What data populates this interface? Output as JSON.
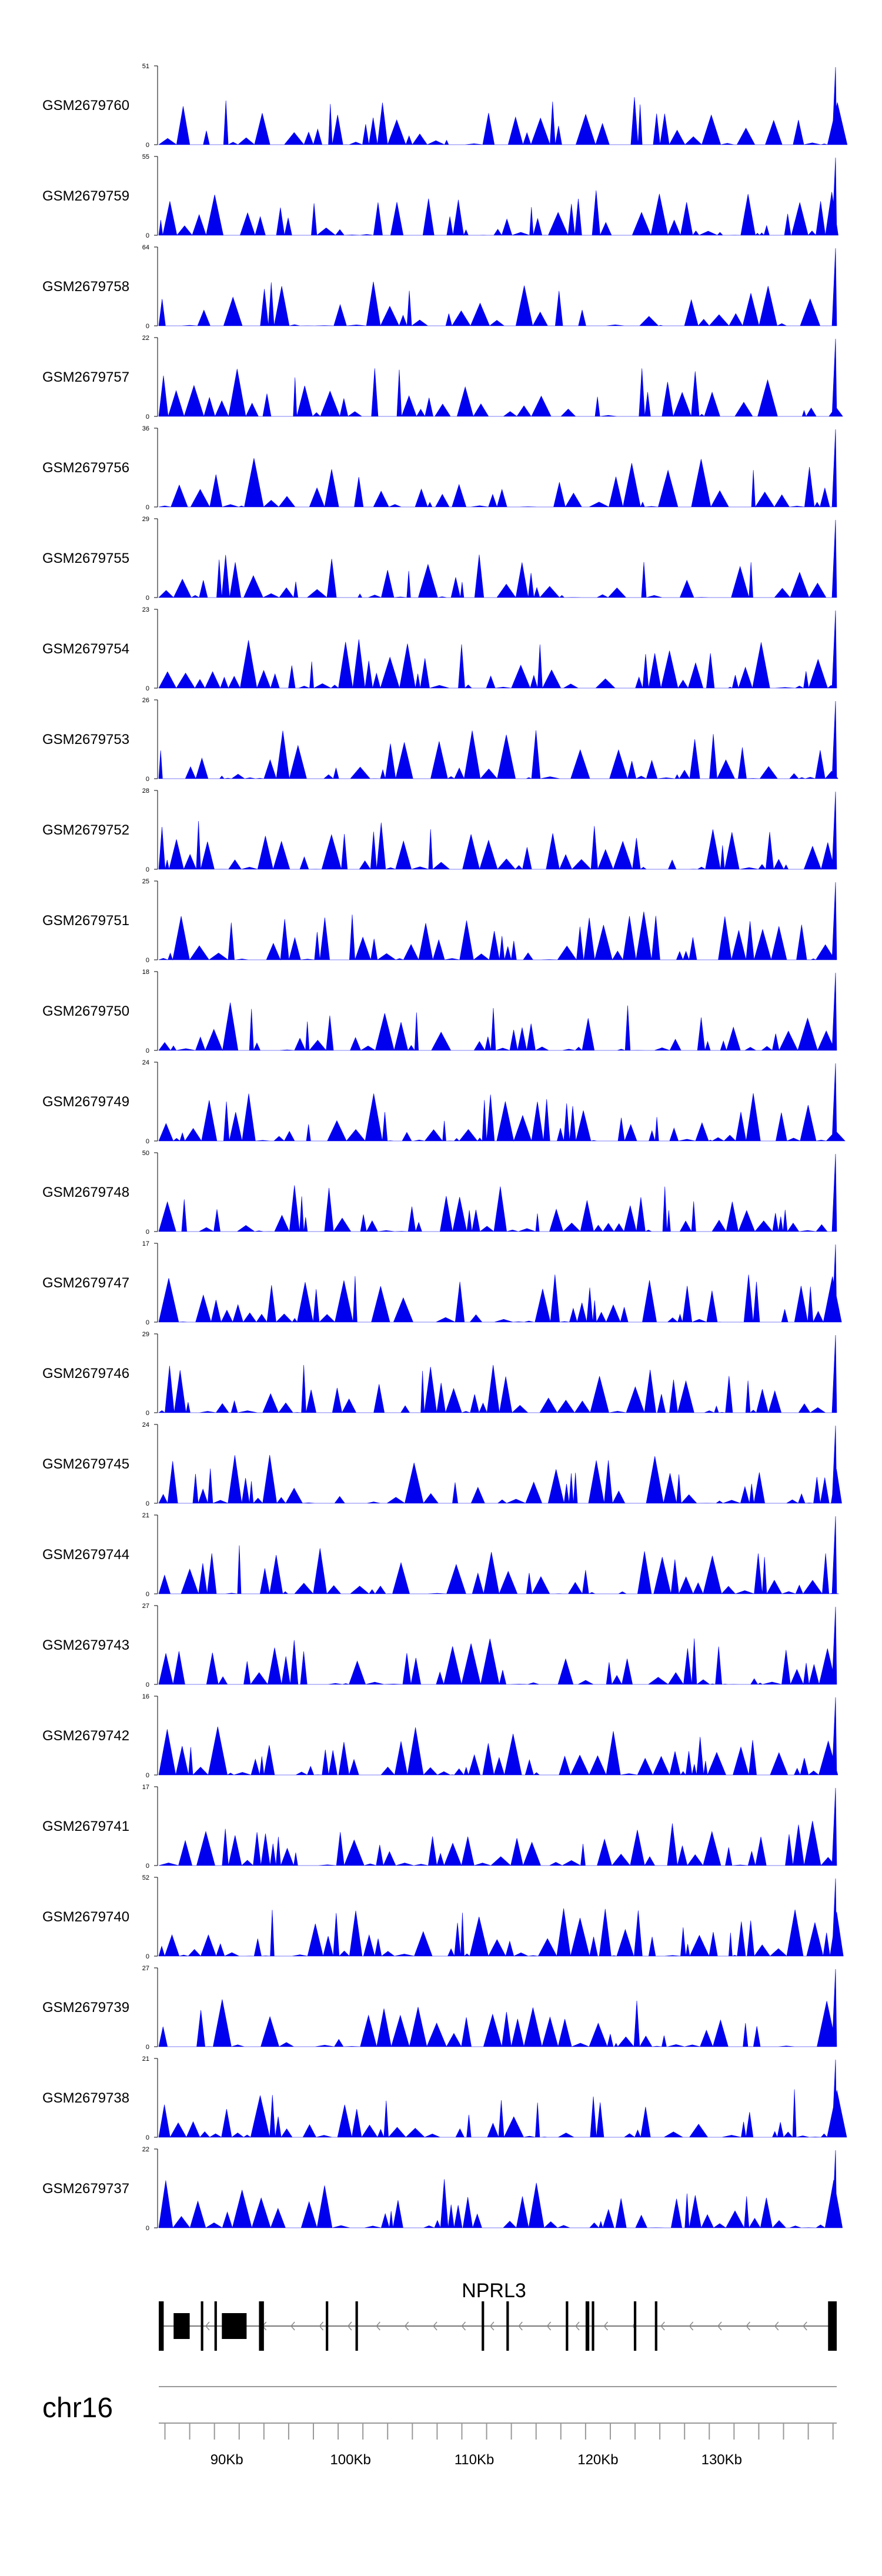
{
  "chart_data": {
    "type": "area",
    "title": "",
    "chromosome": "chr16",
    "x_range_kb": [
      84.5,
      139.3
    ],
    "fill_color": "#0000ee",
    "gene": {
      "name": "NPRL3",
      "strand": "-",
      "start_kb": 84.5,
      "end_kb": 139.3,
      "exons_kb": [
        [
          84.5,
          84.9
        ],
        [
          85.7,
          87.0
        ],
        [
          87.9,
          88.1
        ],
        [
          89.0,
          89.2
        ],
        [
          89.6,
          91.6
        ],
        [
          92.6,
          93.0
        ],
        [
          98.0,
          98.2
        ],
        [
          100.4,
          100.6
        ],
        [
          110.6,
          110.8
        ],
        [
          112.6,
          112.8
        ],
        [
          117.4,
          117.6
        ],
        [
          119.0,
          119.3
        ],
        [
          119.5,
          119.7
        ],
        [
          122.9,
          123.1
        ],
        [
          124.6,
          124.8
        ],
        [
          138.6,
          139.3
        ]
      ]
    },
    "axis_ticks_kb": [
      90,
      100,
      110,
      120,
      130
    ],
    "axis_tick_labels": [
      "90Kb",
      "100Kb",
      "110Kb",
      "120Kb",
      "130Kb"
    ],
    "series": [
      {
        "name": "GSM2679760",
        "ymax": 51,
        "seed": 60
      },
      {
        "name": "GSM2679759",
        "ymax": 55,
        "seed": 59
      },
      {
        "name": "GSM2679758",
        "ymax": 64,
        "seed": 58
      },
      {
        "name": "GSM2679757",
        "ymax": 22,
        "seed": 57
      },
      {
        "name": "GSM2679756",
        "ymax": 36,
        "seed": 56
      },
      {
        "name": "GSM2679755",
        "ymax": 29,
        "seed": 55
      },
      {
        "name": "GSM2679754",
        "ymax": 23,
        "seed": 54
      },
      {
        "name": "GSM2679753",
        "ymax": 26,
        "seed": 53
      },
      {
        "name": "GSM2679752",
        "ymax": 28,
        "seed": 52
      },
      {
        "name": "GSM2679751",
        "ymax": 25,
        "seed": 51
      },
      {
        "name": "GSM2679750",
        "ymax": 18,
        "seed": 50
      },
      {
        "name": "GSM2679749",
        "ymax": 24,
        "seed": 49
      },
      {
        "name": "GSM2679748",
        "ymax": 50,
        "seed": 48
      },
      {
        "name": "GSM2679747",
        "ymax": 17,
        "seed": 47
      },
      {
        "name": "GSM2679746",
        "ymax": 29,
        "seed": 46
      },
      {
        "name": "GSM2679745",
        "ymax": 24,
        "seed": 45
      },
      {
        "name": "GSM2679744",
        "ymax": 21,
        "seed": 44
      },
      {
        "name": "GSM2679743",
        "ymax": 27,
        "seed": 43
      },
      {
        "name": "GSM2679742",
        "ymax": 16,
        "seed": 42
      },
      {
        "name": "GSM2679741",
        "ymax": 17,
        "seed": 41
      },
      {
        "name": "GSM2679740",
        "ymax": 52,
        "seed": 40
      },
      {
        "name": "GSM2679739",
        "ymax": 27,
        "seed": 39
      },
      {
        "name": "GSM2679738",
        "ymax": 21,
        "seed": 38
      },
      {
        "name": "GSM2679737",
        "ymax": 22,
        "seed": 37
      }
    ]
  }
}
